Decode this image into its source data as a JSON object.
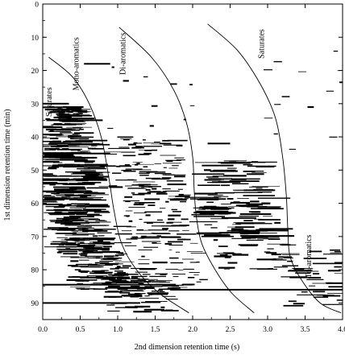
{
  "chart_data": {
    "type": "heatmap",
    "xlabel": "2nd dimension retention time (s)",
    "ylabel": "1st dimension retention time (min)",
    "xlim": [
      0.0,
      4.0
    ],
    "ylim": [
      0,
      95
    ],
    "y_inverted": true,
    "x_ticks": [
      0.0,
      0.5,
      1.0,
      1.5,
      2.0,
      2.5,
      3.0,
      3.5,
      4.0
    ],
    "x_tick_labels": [
      "0.0",
      "0.5",
      "1.0",
      "1.5",
      "2.0",
      "2.5",
      "3.0",
      "3.5",
      "4.0"
    ],
    "y_ticks": [
      0,
      10,
      20,
      30,
      40,
      50,
      60,
      70,
      80,
      90
    ],
    "y_tick_labels": [
      "0",
      "10",
      "20",
      "30",
      "40",
      "50",
      "60",
      "70",
      "80",
      "90"
    ],
    "grid": false,
    "legend": "none",
    "colors": {
      "ink": "#000000",
      "background": "#ffffff"
    },
    "boundaries": [
      {
        "points": [
          [
            0.08,
            16
          ],
          [
            0.4,
            22
          ],
          [
            0.62,
            30
          ],
          [
            0.78,
            40
          ],
          [
            0.88,
            52
          ],
          [
            0.95,
            62
          ],
          [
            1.05,
            72
          ],
          [
            1.25,
            80
          ],
          [
            1.55,
            87
          ],
          [
            1.95,
            93
          ]
        ]
      },
      {
        "points": [
          [
            1.02,
            7
          ],
          [
            1.45,
            16
          ],
          [
            1.75,
            26
          ],
          [
            1.92,
            36
          ],
          [
            2.0,
            46
          ],
          [
            2.02,
            56
          ],
          [
            2.05,
            64
          ],
          [
            2.12,
            72
          ],
          [
            2.3,
            80
          ],
          [
            2.52,
            87
          ],
          [
            2.82,
            93
          ]
        ]
      },
      {
        "points": [
          [
            2.2,
            6
          ],
          [
            2.6,
            14
          ],
          [
            2.9,
            24
          ],
          [
            3.1,
            34
          ],
          [
            3.2,
            46
          ],
          [
            3.25,
            58
          ],
          [
            3.27,
            68
          ],
          [
            3.3,
            76
          ],
          [
            3.45,
            83
          ],
          [
            3.7,
            90
          ],
          [
            3.98,
            93
          ]
        ]
      }
    ],
    "annotations": [
      {
        "text": "Saturates",
        "x": 0.12,
        "y": 29.5,
        "rotate": -90
      },
      {
        "text": "Mono-aromatics",
        "x": 0.48,
        "y": 18,
        "rotate": -90
      },
      {
        "text": "Di-aromatics",
        "x": 1.1,
        "y": 15,
        "rotate": -90
      },
      {
        "text": "Saturates",
        "x": 2.95,
        "y": 12,
        "rotate": -90
      },
      {
        "text": "Tri-aromatics",
        "x": 3.58,
        "y": 76,
        "rotate": -90
      }
    ],
    "clusters": [
      {
        "x0": 0.05,
        "x1": 0.55,
        "y0": 31,
        "y1": 41,
        "rows": 90,
        "wmin": 0.05,
        "wmax": 0.35,
        "shift": 0,
        "seed": 11
      },
      {
        "x0": 0.02,
        "x1": 0.75,
        "y0": 41,
        "y1": 60,
        "rows": 180,
        "wmin": 0.08,
        "wmax": 0.45,
        "shift": 0,
        "seed": 12
      },
      {
        "x0": 0.1,
        "x1": 0.8,
        "y0": 60,
        "y1": 75,
        "rows": 140,
        "wmin": 0.06,
        "wmax": 0.35,
        "shift": 0.08,
        "seed": 13
      },
      {
        "x0": 0.3,
        "x1": 1.05,
        "y0": 72,
        "y1": 86,
        "rows": 130,
        "wmin": 0.05,
        "wmax": 0.3,
        "shift": 0.15,
        "seed": 14
      },
      {
        "x0": 0.7,
        "x1": 1.6,
        "y0": 82,
        "y1": 93,
        "rows": 80,
        "wmin": 0.05,
        "wmax": 0.3,
        "shift": 0.2,
        "seed": 15
      },
      {
        "x0": 0.85,
        "x1": 1.85,
        "y0": 40,
        "y1": 56,
        "rows": 90,
        "wmin": 0.04,
        "wmax": 0.3,
        "shift": 0,
        "seed": 21
      },
      {
        "x0": 1.0,
        "x1": 1.9,
        "y0": 56,
        "y1": 72,
        "rows": 80,
        "wmin": 0.04,
        "wmax": 0.28,
        "shift": 0.05,
        "seed": 22
      },
      {
        "x0": 1.15,
        "x1": 2.1,
        "y0": 72,
        "y1": 86,
        "rows": 50,
        "wmin": 0.04,
        "wmax": 0.22,
        "shift": 0.1,
        "seed": 23
      },
      {
        "x0": 2.15,
        "x1": 3.0,
        "y0": 47,
        "y1": 58,
        "rows": 55,
        "wmin": 0.08,
        "wmax": 0.45,
        "shift": 0,
        "seed": 31
      },
      {
        "x0": 2.1,
        "x1": 3.1,
        "y0": 58,
        "y1": 70,
        "rows": 90,
        "wmin": 0.08,
        "wmax": 0.5,
        "shift": 0.05,
        "seed": 32
      },
      {
        "x0": 2.3,
        "x1": 3.3,
        "y0": 70,
        "y1": 80,
        "rows": 45,
        "wmin": 0.05,
        "wmax": 0.3,
        "shift": 0.05,
        "seed": 33
      },
      {
        "x0": 3.3,
        "x1": 4.0,
        "y0": 74,
        "y1": 92,
        "rows": 40,
        "wmin": 0.08,
        "wmax": 0.4,
        "shift": 0,
        "seed": 41
      },
      {
        "x0": 0.9,
        "x1": 2.0,
        "y0": 18,
        "y1": 40,
        "rows": 10,
        "wmin": 0.03,
        "wmax": 0.1,
        "shift": 0,
        "seed": 51
      },
      {
        "x0": 3.0,
        "x1": 4.0,
        "y0": 10,
        "y1": 45,
        "rows": 14,
        "wmin": 0.04,
        "wmax": 0.12,
        "shift": 0,
        "seed": 52
      }
    ],
    "streaks": [
      {
        "x0": 0.0,
        "x1": 1.6,
        "y": 84.5
      },
      {
        "x0": 0.0,
        "x1": 1.3,
        "y": 90
      },
      {
        "x0": 1.7,
        "x1": 4.0,
        "y": 86
      },
      {
        "x0": 0.0,
        "x1": 0.9,
        "y": 45
      },
      {
        "x0": 0.0,
        "x1": 0.35,
        "y": 30
      },
      {
        "x0": 0.05,
        "x1": 0.8,
        "y": 35
      },
      {
        "x0": 2.2,
        "x1": 2.5,
        "y": 42
      },
      {
        "x0": 0.55,
        "x1": 0.9,
        "y": 18
      }
    ]
  }
}
